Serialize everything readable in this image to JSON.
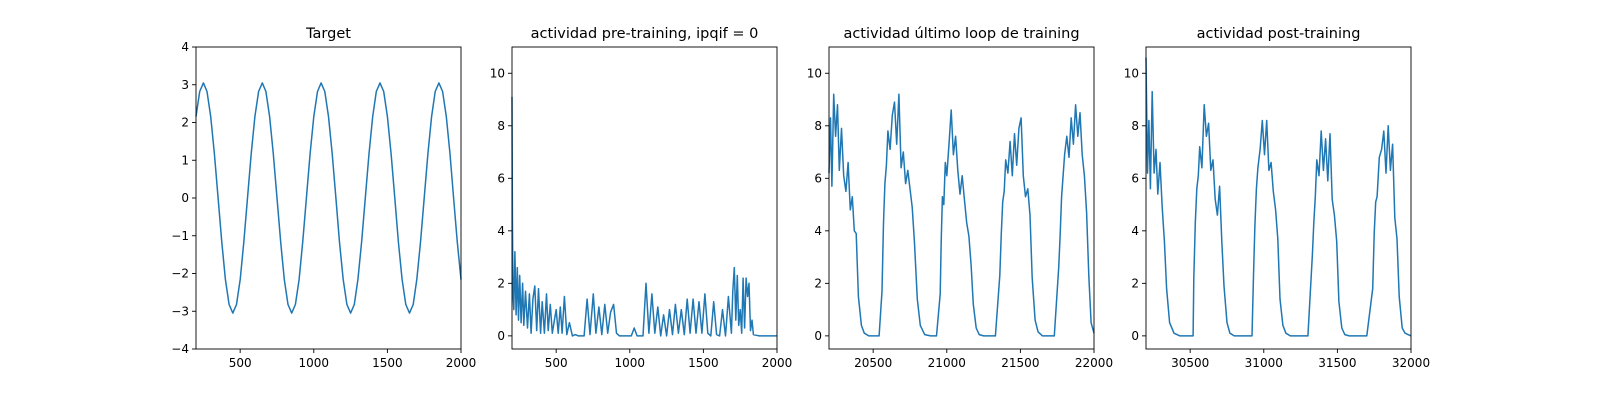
{
  "chart_data": [
    {
      "type": "line",
      "title": "Target",
      "xlim": [
        200,
        2000
      ],
      "ylim": [
        -4,
        4
      ],
      "xticks": [
        500,
        1000,
        1500,
        2000
      ],
      "yticks": [
        -4,
        -3,
        -2,
        -1,
        0,
        1,
        2,
        3,
        4
      ],
      "series": [
        {
          "color": "#1f77b4",
          "description": "sinusoid, amplitude 3.05, period 400",
          "x": [
            200,
            225,
            250,
            275,
            300,
            325,
            350,
            375,
            400,
            425,
            450,
            475,
            500,
            525,
            550,
            575,
            600,
            625,
            650,
            675,
            700,
            725,
            750,
            775,
            800,
            825,
            850,
            875,
            900,
            925,
            950,
            975,
            1000,
            1025,
            1050,
            1075,
            1100,
            1125,
            1150,
            1175,
            1200,
            1225,
            1250,
            1275,
            1300,
            1325,
            1350,
            1375,
            1400,
            1425,
            1450,
            1475,
            1500,
            1525,
            1550,
            1575,
            1600,
            1625,
            1650,
            1675,
            1700,
            1725,
            1750,
            1775,
            1800,
            1825,
            1850,
            1875,
            1900,
            1925,
            1950,
            1975,
            2000
          ],
          "y": [
            2.16,
            2.82,
            3.05,
            2.82,
            2.16,
            1.17,
            0,
            -1.17,
            -2.16,
            -2.82,
            -3.05,
            -2.82,
            -2.16,
            -1.17,
            0,
            1.17,
            2.16,
            2.82,
            3.05,
            2.82,
            2.16,
            1.17,
            0,
            -1.17,
            -2.16,
            -2.82,
            -3.05,
            -2.82,
            -2.16,
            -1.17,
            0,
            1.17,
            2.16,
            2.82,
            3.05,
            2.82,
            2.16,
            1.17,
            0,
            -1.17,
            -2.16,
            -2.82,
            -3.05,
            -2.82,
            -2.16,
            -1.17,
            0,
            1.17,
            2.16,
            2.82,
            3.05,
            2.82,
            2.16,
            1.17,
            0,
            -1.17,
            -2.16,
            -2.82,
            -3.05,
            -2.82,
            -2.16,
            -1.17,
            0,
            1.17,
            2.16,
            2.82,
            3.05,
            2.82,
            2.16,
            1.17,
            0,
            -1.17,
            -2.16
          ]
        }
      ]
    },
    {
      "type": "line",
      "title": "actividad pre-training, ipqif = 0",
      "xlim": [
        200,
        2000
      ],
      "ylim": [
        -0.5,
        11
      ],
      "xticks": [
        500,
        1000,
        1500,
        2000
      ],
      "yticks": [
        0,
        2,
        4,
        6,
        8,
        10
      ],
      "series": [
        {
          "color": "#1f77b4",
          "x": [
            200,
            203,
            207,
            212,
            220,
            228,
            236,
            244,
            252,
            262,
            272,
            280,
            292,
            305,
            318,
            330,
            342,
            355,
            368,
            380,
            394,
            405,
            420,
            434,
            446,
            460,
            474,
            488,
            500,
            514,
            528,
            540,
            556,
            572,
            590,
            610,
            630,
            650,
            670,
            690,
            710,
            730,
            752,
            770,
            790,
            810,
            830,
            850,
            870,
            890,
            910,
            930,
            950,
            970,
            990,
            1010,
            1030,
            1050,
            1070,
            1090,
            1110,
            1130,
            1150,
            1170,
            1190,
            1210,
            1230,
            1250,
            1270,
            1290,
            1310,
            1330,
            1350,
            1370,
            1390,
            1410,
            1430,
            1450,
            1470,
            1490,
            1510,
            1530,
            1550,
            1570,
            1590,
            1610,
            1630,
            1650,
            1670,
            1690,
            1700,
            1710,
            1720,
            1730,
            1740,
            1750,
            1760,
            1770,
            1780,
            1790,
            1800,
            1810,
            1820,
            1830,
            1840,
            1860,
            1880,
            1900,
            1930,
            1960,
            2000
          ],
          "y": [
            9.1,
            4.5,
            1.6,
            1.0,
            3.2,
            0.8,
            2.6,
            0.6,
            2.3,
            0.5,
            2.0,
            0.4,
            1.7,
            0.3,
            1.6,
            0.1,
            1.4,
            1.9,
            0.2,
            1.8,
            0.1,
            1.3,
            0.1,
            1.6,
            0.2,
            1.2,
            0.1,
            0.6,
            1.0,
            0.1,
            1.1,
            0.1,
            1.5,
            0.05,
            0.5,
            0.0,
            0.05,
            0.0,
            0.0,
            0.0,
            1.4,
            0.05,
            1.6,
            0.1,
            1.1,
            0.05,
            1.2,
            0.1,
            0.9,
            1.2,
            0.1,
            0.0,
            0.0,
            0.0,
            0.0,
            0.0,
            0.3,
            0.0,
            0.0,
            0.0,
            2.0,
            0.1,
            1.6,
            0.1,
            1.1,
            0.0,
            0.8,
            0.0,
            1.0,
            0.05,
            1.2,
            0.1,
            1.0,
            0.05,
            1.4,
            0.1,
            1.4,
            0.1,
            1.3,
            0.1,
            1.6,
            0.1,
            0.0,
            1.3,
            0.05,
            0.0,
            1.0,
            0.0,
            1.5,
            0.1,
            1.7,
            2.6,
            0.6,
            2.3,
            0.4,
            1.0,
            0.1,
            2.2,
            0.3,
            2.2,
            1.5,
            2.0,
            0.2,
            0.6,
            0.05,
            0.02,
            0.0,
            0.0,
            0.0,
            0.0,
            0.0
          ]
        }
      ]
    },
    {
      "type": "line",
      "title": "actividad último loop de training",
      "xlim": [
        20200,
        22000
      ],
      "ylim": [
        -0.5,
        11
      ],
      "xticks": [
        20500,
        21000,
        21500,
        22000
      ],
      "yticks": [
        0,
        2,
        4,
        6,
        8,
        10
      ],
      "series": [
        {
          "color": "#1f77b4",
          "x": [
            20200,
            20210,
            20220,
            20232,
            20245,
            20258,
            20270,
            20285,
            20300,
            20315,
            20330,
            20345,
            20358,
            20372,
            20385,
            20400,
            20420,
            20440,
            20470,
            20500,
            20540,
            20560,
            20570,
            20580,
            20590,
            20600,
            20615,
            20630,
            20645,
            20660,
            20675,
            20690,
            20705,
            20720,
            20735,
            20750,
            20765,
            20780,
            20800,
            20820,
            20850,
            20890,
            20930,
            20955,
            20962,
            20970,
            20980,
            20990,
            21000,
            21015,
            21030,
            21045,
            21060,
            21075,
            21090,
            21105,
            21120,
            21135,
            21150,
            21165,
            21180,
            21200,
            21220,
            21250,
            21290,
            21330,
            21360,
            21370,
            21380,
            21390,
            21400,
            21415,
            21430,
            21445,
            21460,
            21475,
            21490,
            21505,
            21520,
            21535,
            21550,
            21565,
            21580,
            21600,
            21620,
            21650,
            21690,
            21730,
            21760,
            21770,
            21780,
            21790,
            21800,
            21815,
            21830,
            21845,
            21860,
            21875,
            21890,
            21905,
            21920,
            21935,
            21950,
            21965,
            21980,
            22000
          ],
          "y": [
            6.2,
            8.3,
            5.7,
            9.2,
            7.6,
            8.8,
            6.3,
            7.9,
            6.1,
            5.5,
            6.6,
            4.8,
            5.3,
            4.0,
            3.9,
            1.5,
            0.4,
            0.1,
            0.0,
            0.0,
            0.0,
            1.7,
            4.3,
            5.8,
            6.5,
            7.8,
            7.1,
            8.4,
            8.9,
            7.3,
            9.2,
            6.4,
            7.0,
            5.8,
            6.3,
            5.6,
            4.9,
            3.6,
            1.4,
            0.4,
            0.05,
            0.0,
            0.0,
            1.6,
            3.6,
            5.3,
            5.0,
            6.6,
            6.1,
            7.3,
            8.6,
            6.9,
            7.6,
            6.3,
            5.4,
            6.1,
            5.2,
            4.3,
            3.8,
            2.7,
            1.2,
            0.3,
            0.05,
            0.0,
            0.0,
            0.0,
            2.3,
            3.9,
            5.1,
            5.5,
            6.7,
            6.2,
            7.4,
            6.1,
            7.7,
            6.5,
            7.9,
            8.3,
            6.1,
            5.3,
            5.6,
            4.6,
            2.2,
            0.6,
            0.15,
            0.0,
            0.0,
            0.0,
            2.6,
            3.8,
            5.3,
            6.1,
            6.9,
            7.6,
            6.8,
            8.3,
            7.3,
            8.8,
            7.6,
            8.5,
            6.9,
            6.1,
            4.7,
            2.3,
            0.5,
            0.1
          ]
        }
      ]
    },
    {
      "type": "line",
      "title": "actividad post-training",
      "xlim": [
        30200,
        32000
      ],
      "ylim": [
        -0.5,
        11
      ],
      "xticks": [
        30500,
        31000,
        31500,
        32000
      ],
      "yticks": [
        0,
        2,
        4,
        6,
        8,
        10
      ],
      "series": [
        {
          "color": "#1f77b4",
          "x": [
            30200,
            30210,
            30220,
            30230,
            30242,
            30255,
            30268,
            30280,
            30295,
            30310,
            30325,
            30340,
            30360,
            30390,
            30430,
            30470,
            30520,
            30525,
            30535,
            30545,
            30555,
            30565,
            30580,
            30595,
            30610,
            30625,
            30640,
            30655,
            30670,
            30685,
            30700,
            30715,
            30730,
            30750,
            30770,
            30800,
            30840,
            30880,
            30920,
            30930,
            30940,
            30950,
            30960,
            30975,
            30990,
            31005,
            31020,
            31035,
            31050,
            31065,
            31080,
            31095,
            31110,
            31130,
            31150,
            31180,
            31220,
            31260,
            31300,
            31330,
            31340,
            31350,
            31360,
            31375,
            31390,
            31405,
            31420,
            31435,
            31450,
            31465,
            31480,
            31495,
            31510,
            31530,
            31550,
            31580,
            31620,
            31660,
            31700,
            31740,
            31750,
            31760,
            31770,
            31785,
            31800,
            31815,
            31830,
            31845,
            31860,
            31875,
            31890,
            31905,
            31920,
            31940,
            31960,
            32000
          ],
          "y": [
            10.6,
            6.2,
            8.2,
            5.6,
            9.3,
            6.2,
            7.1,
            5.4,
            6.6,
            4.9,
            3.6,
            1.8,
            0.5,
            0.1,
            0.0,
            0.0,
            0.0,
            2.2,
            4.3,
            5.6,
            6.1,
            7.2,
            6.4,
            8.8,
            7.6,
            8.1,
            6.3,
            6.7,
            5.2,
            4.6,
            5.7,
            3.6,
            1.9,
            0.5,
            0.1,
            0.0,
            0.0,
            0.0,
            0.0,
            2.3,
            4.2,
            5.6,
            6.4,
            7.1,
            8.2,
            6.9,
            8.2,
            6.3,
            6.6,
            5.5,
            4.8,
            3.7,
            1.4,
            0.4,
            0.1,
            0.0,
            0.0,
            0.0,
            0.0,
            3.1,
            4.3,
            5.3,
            6.7,
            6.1,
            7.8,
            6.3,
            7.5,
            5.9,
            7.7,
            5.2,
            4.6,
            3.6,
            1.3,
            0.3,
            0.05,
            0.0,
            0.0,
            0.0,
            0.0,
            1.8,
            3.9,
            5.1,
            5.3,
            6.8,
            7.1,
            7.8,
            6.2,
            8.0,
            6.3,
            7.3,
            4.5,
            3.7,
            1.5,
            0.3,
            0.1,
            0.0
          ]
        }
      ]
    }
  ]
}
